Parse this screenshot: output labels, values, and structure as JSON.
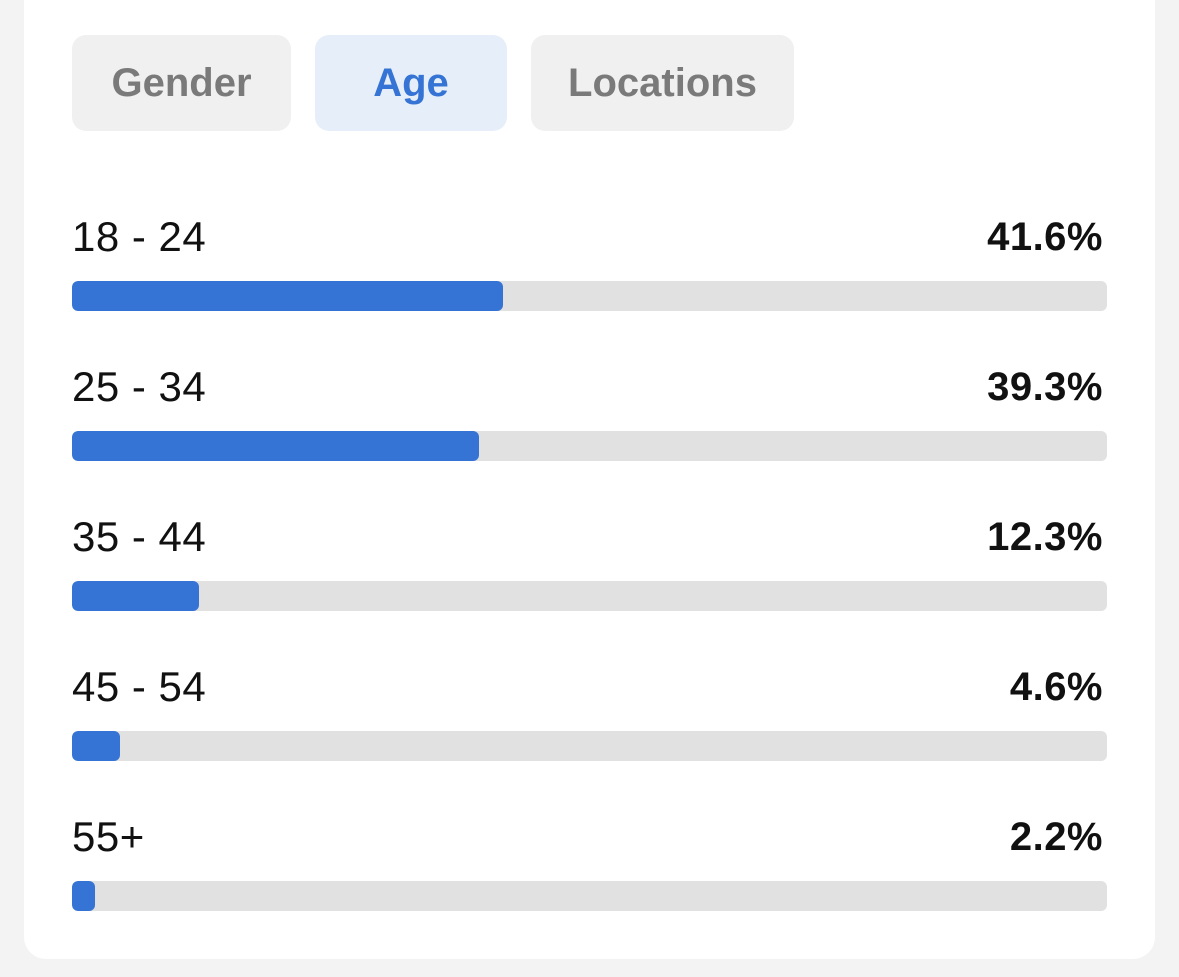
{
  "tabs": [
    {
      "label": "Gender",
      "active": false
    },
    {
      "label": "Age",
      "active": true
    },
    {
      "label": "Locations",
      "active": false
    }
  ],
  "age_rows": [
    {
      "label": "18 - 24",
      "value_text": "41.6%",
      "fraction": 0.416
    },
    {
      "label": "25 - 34",
      "value_text": "39.3%",
      "fraction": 0.393
    },
    {
      "label": "35 - 44",
      "value_text": "12.3%",
      "fraction": 0.123
    },
    {
      "label": "45 - 54",
      "value_text": "4.6%",
      "fraction": 0.046
    },
    {
      "label": "55+",
      "value_text": "2.2%",
      "fraction": 0.022
    }
  ],
  "colors": {
    "accent": "#3574d4",
    "track": "#e1e1e1",
    "active_tab_bg": "#e6eff9",
    "inactive_tab_bg": "#f0f0f0",
    "inactive_tab_text": "#7a7a7a"
  }
}
